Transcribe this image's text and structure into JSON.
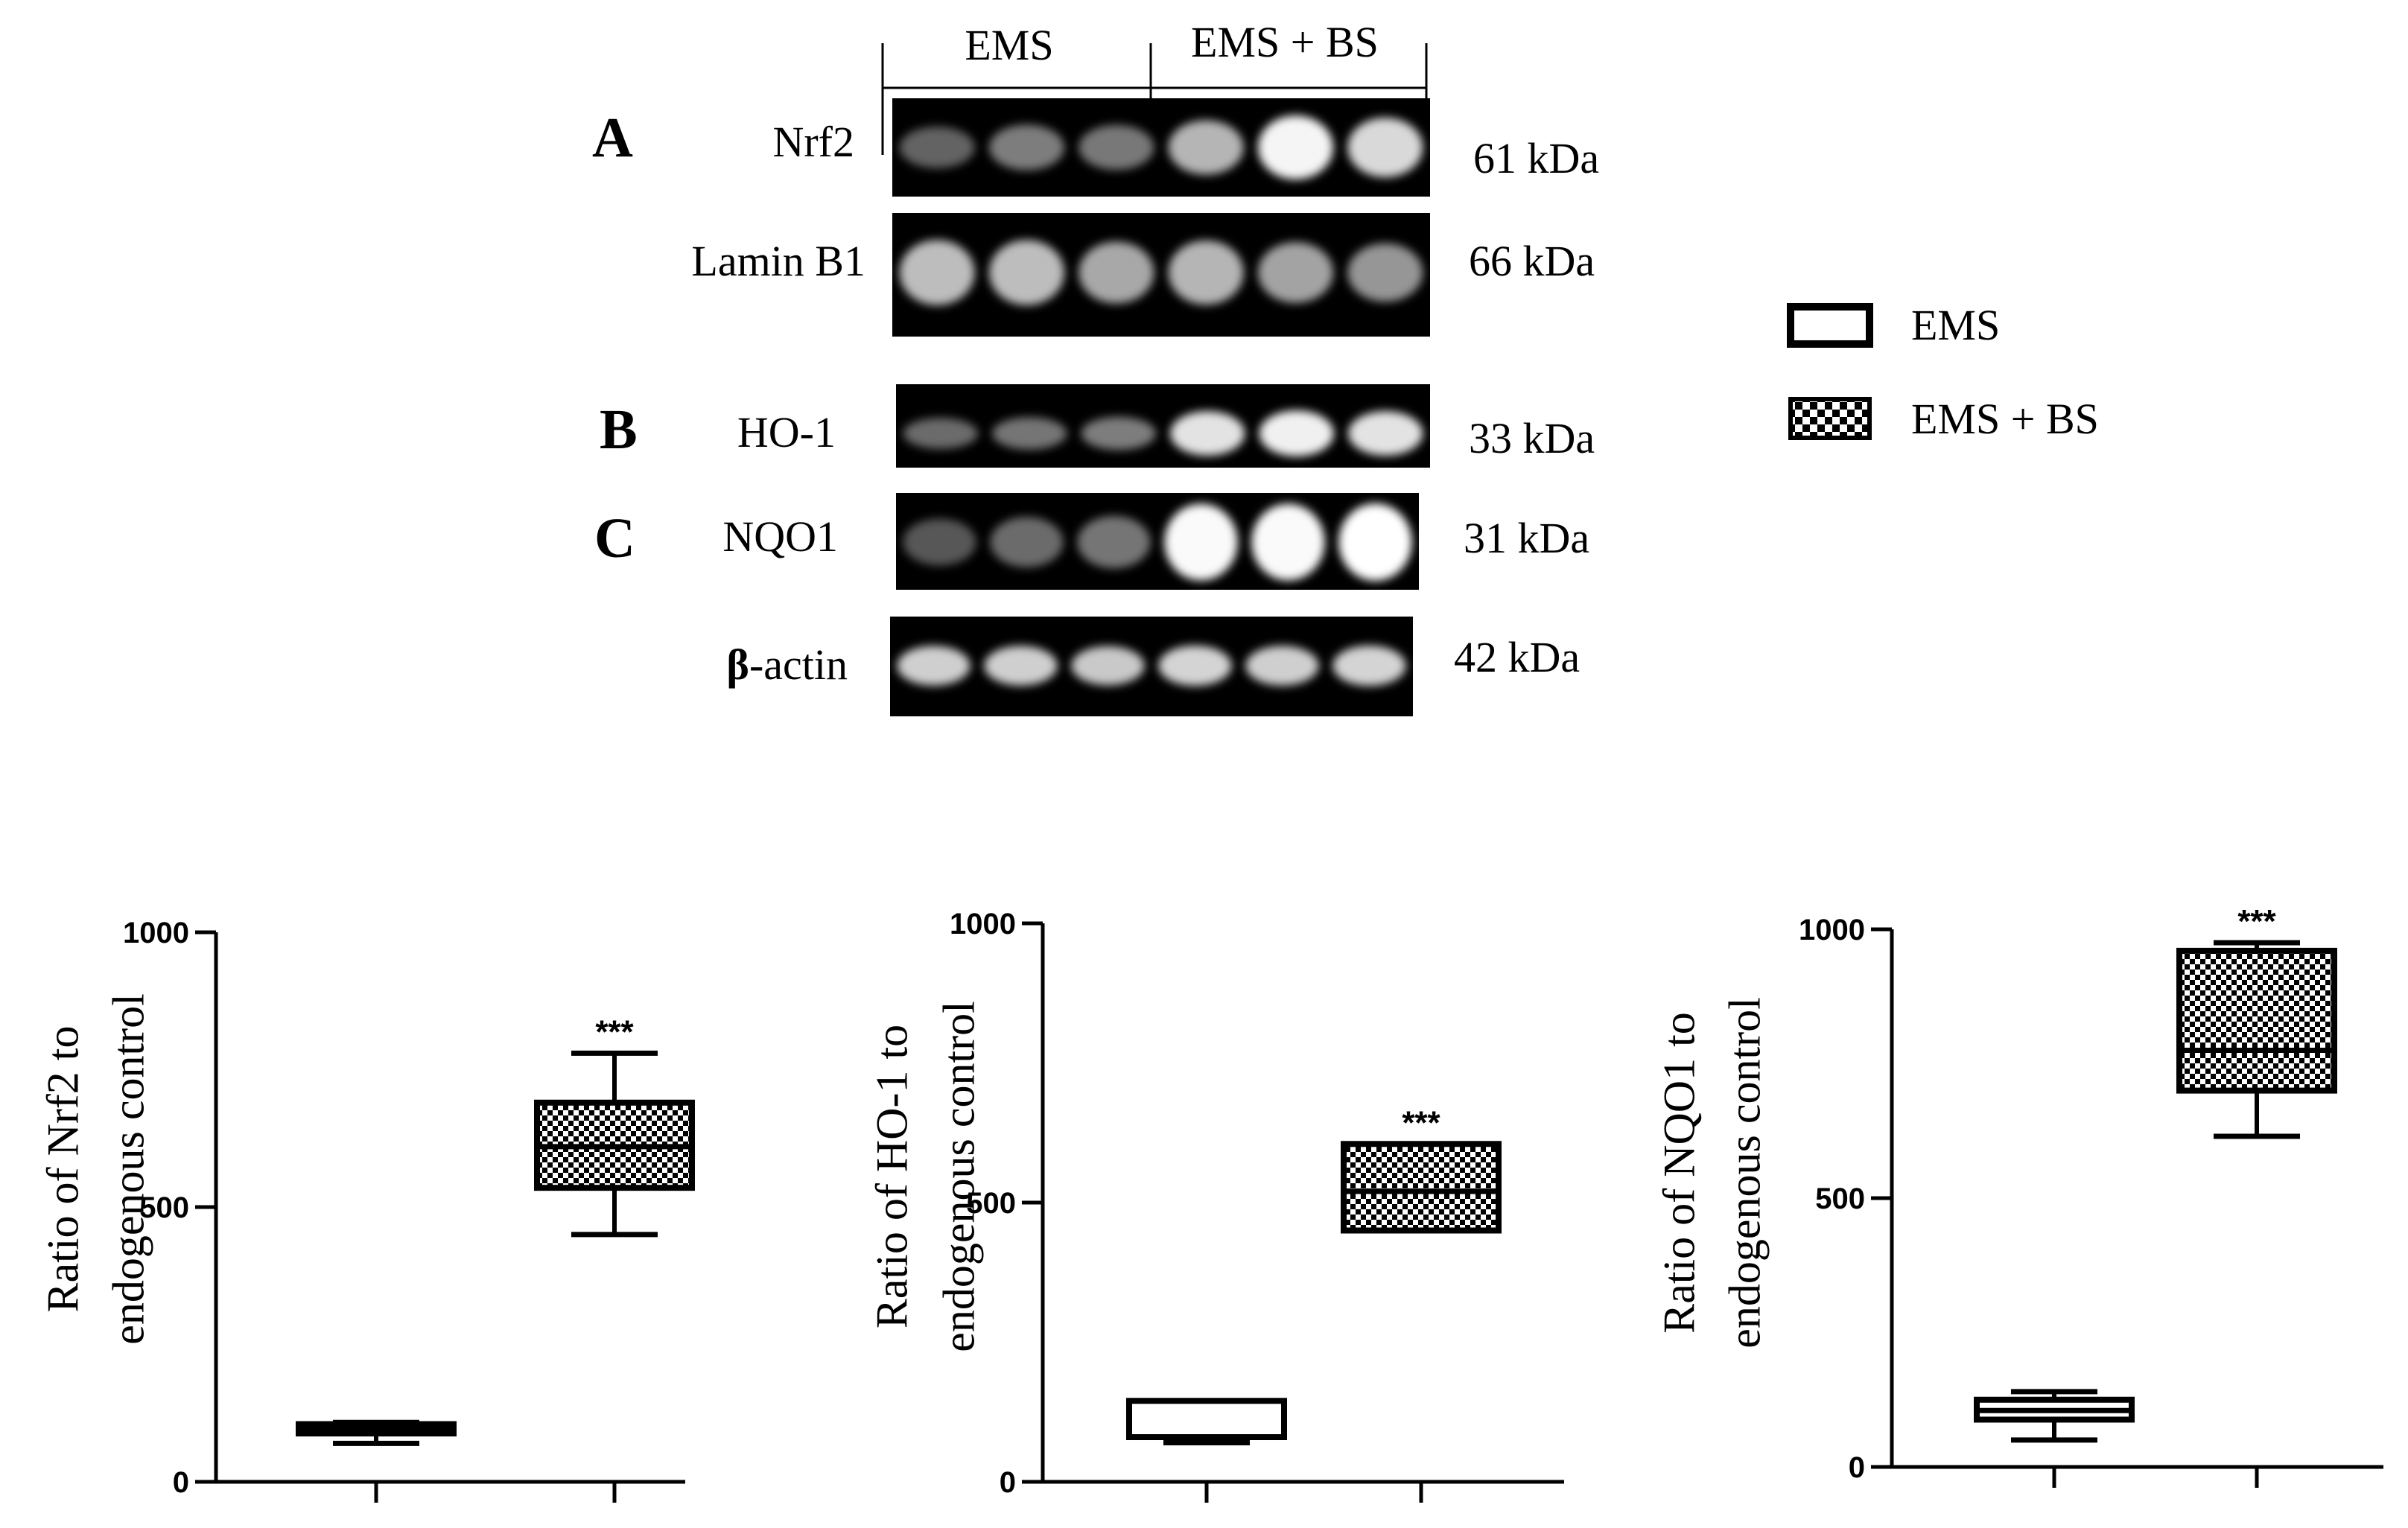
{
  "blot": {
    "group_headers": [
      "EMS",
      "EMS + BS"
    ],
    "panels": [
      {
        "letter": "A",
        "label": "Nrf2",
        "kda": "61 kDa",
        "intensities": [
          0.18,
          0.32,
          0.3,
          0.62,
          0.95,
          0.8
        ]
      },
      {
        "letter": "",
        "label": "Lamin B1",
        "kda": "66 kDa",
        "intensities": [
          0.65,
          0.65,
          0.55,
          0.62,
          0.52,
          0.45
        ]
      },
      {
        "letter": "B",
        "label": "HO-1",
        "kda": "33 kDa",
        "intensities": [
          0.22,
          0.28,
          0.32,
          0.85,
          0.92,
          0.85
        ]
      },
      {
        "letter": "C",
        "label": "NQO1",
        "kda": "31 kDa",
        "intensities": [
          0.12,
          0.22,
          0.28,
          0.98,
          0.98,
          1.0
        ]
      },
      {
        "letter": "",
        "label_bold": "β",
        "label": "-actin",
        "kda": "42 kDa",
        "intensities": [
          0.75,
          0.75,
          0.72,
          0.78,
          0.75,
          0.78
        ]
      }
    ]
  },
  "legend": {
    "items": [
      {
        "name": "EMS",
        "fill": "open"
      },
      {
        "name": "EMS + BS",
        "fill": "checkered"
      }
    ]
  },
  "colors": {
    "box_edge": "#000000",
    "checker_dark": "#000000",
    "checker_light": "#ffffff",
    "band": "#ffffff",
    "blot_bg": "#000000"
  },
  "chart_data": [
    {
      "type": "box",
      "ylabel_line1": "Ratio of Nrf2 to",
      "ylabel_line2": "endogenous control",
      "ylim": [
        0,
        1000
      ],
      "yticks": [
        0,
        500,
        1000
      ],
      "categories": [
        "EMS",
        "EMS + BS"
      ],
      "boxes": [
        {
          "group": "EMS",
          "min": 70,
          "q1": 88,
          "median": 97,
          "q3": 105,
          "max": 108,
          "sig": ""
        },
        {
          "group": "EMS + BS",
          "min": 450,
          "q1": 535,
          "median": 610,
          "q3": 690,
          "max": 780,
          "sig": "***"
        }
      ]
    },
    {
      "type": "box",
      "ylabel_line1": "Ratio of HO-1 to",
      "ylabel_line2": "endogenous control",
      "ylim": [
        0,
        1000
      ],
      "yticks": [
        0,
        500,
        1000
      ],
      "categories": [
        "EMS",
        "EMS + BS"
      ],
      "boxes": [
        {
          "group": "EMS",
          "min": 70,
          "q1": 80,
          "median": 80,
          "q3": 145,
          "max": 145,
          "sig": ""
        },
        {
          "group": "EMS + BS",
          "min": 450,
          "q1": 450,
          "median": 520,
          "q3": 605,
          "max": 605,
          "sig": "***"
        }
      ]
    },
    {
      "type": "box",
      "ylabel_line1": "Ratio of NQO1 to",
      "ylabel_line2": "endogenous control",
      "ylim": [
        0,
        1000
      ],
      "yticks": [
        0,
        500,
        1000
      ],
      "categories": [
        "EMS",
        "EMS + BS"
      ],
      "boxes": [
        {
          "group": "EMS",
          "min": 50,
          "q1": 88,
          "median": 105,
          "q3": 125,
          "max": 140,
          "sig": ""
        },
        {
          "group": "EMS + BS",
          "min": 615,
          "q1": 700,
          "median": 775,
          "q3": 960,
          "max": 975,
          "sig": "***"
        }
      ]
    }
  ]
}
